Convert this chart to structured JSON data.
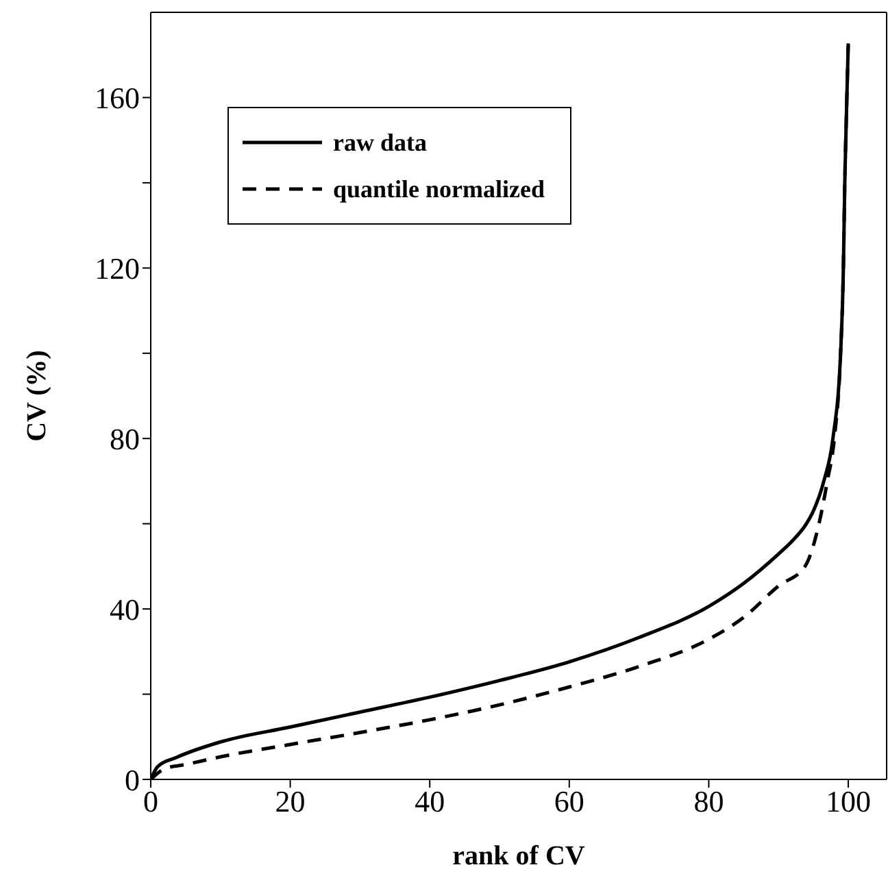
{
  "chart_data": {
    "type": "line",
    "xlabel": "rank of CV",
    "ylabel": "CV (%)",
    "xlim": [
      0,
      105.5
    ],
    "xticks": [
      0,
      20,
      40,
      60,
      80,
      100
    ],
    "ylim": [
      0,
      180
    ],
    "yticks": [
      0,
      {
        "value": 20,
        "label": null
      },
      40,
      {
        "value": 60,
        "label": null
      },
      80,
      {
        "value": 100,
        "label": null
      },
      120,
      {
        "value": 140,
        "label": null
      },
      160
    ],
    "legend": "top left",
    "marker": "none",
    "series": [
      {
        "name": "raw data",
        "color": "#000000",
        "line_style": "solid",
        "x": [
          0,
          1,
          3.6,
          10,
          20,
          30,
          40,
          50,
          60,
          70,
          80,
          85,
          90,
          92,
          94,
          95,
          96.5,
          97.8,
          98.9,
          99.3,
          99.5,
          99.8,
          100
        ],
        "values": [
          0,
          3,
          5.1,
          8.8,
          12.3,
          15.8,
          19.3,
          23.2,
          27.6,
          33.3,
          40.6,
          46,
          52.9,
          56,
          60,
          63,
          70,
          80,
          100,
          120,
          140,
          160,
          172.7
        ]
      },
      {
        "name": "quantile normalized",
        "color": "#000000",
        "line_style": "dashed",
        "x": [
          0,
          2,
          5,
          10,
          20,
          30,
          40,
          50,
          60,
          70,
          80,
          85,
          90,
          93.8,
          95.8,
          97,
          98,
          98.9,
          99.3,
          99.5,
          99.8,
          100
        ],
        "values": [
          0,
          2.5,
          3.5,
          5.3,
          8.2,
          11,
          14,
          17.5,
          21.7,
          26.5,
          32.9,
          38,
          45.4,
          50,
          60,
          70,
          80,
          100,
          120,
          140,
          160,
          172.7
        ]
      }
    ]
  }
}
